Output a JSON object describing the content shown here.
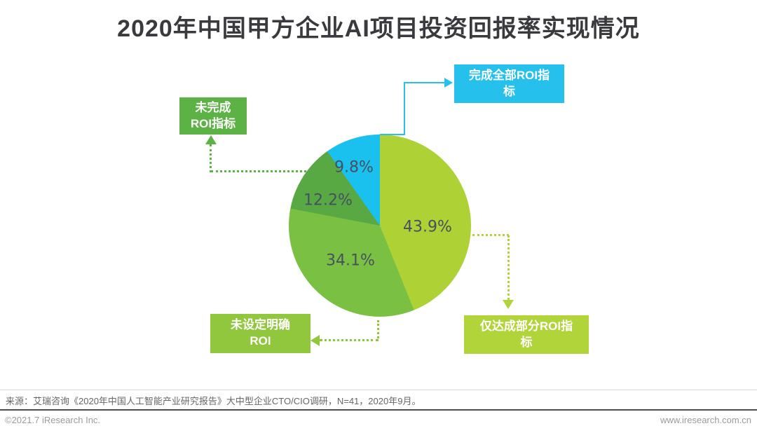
{
  "title": "2020年中国甲方企业AI项目投资回报率实现情况",
  "chart_data": {
    "type": "pie",
    "title": "2020年中国甲方企业AI项目投资回报率实现情况",
    "unit": "%",
    "start_angle_deg": 0,
    "direction": "clockwise",
    "segments": [
      {
        "label": "仅达成部分ROI指标",
        "value": 43.9,
        "display": "43.9%",
        "color": "#aed136"
      },
      {
        "label": "未设定明确ROI",
        "value": 34.1,
        "display": "34.1%",
        "color": "#7ac143"
      },
      {
        "label": "未完成ROI指标",
        "value": 12.2,
        "display": "12.2%",
        "color": "#58a944"
      },
      {
        "label": "完成全部ROI指标",
        "value": 9.8,
        "display": "9.8%",
        "color": "#1ac0ee"
      }
    ],
    "legend_position": "callout-boxes",
    "value_label_color": "#46515d"
  },
  "callouts": {
    "complete_all": {
      "line1": "完成全部ROI指",
      "line2": "标",
      "color": "#25c1ec"
    },
    "not_complete": {
      "line1": "未完成",
      "line2": "ROI指标",
      "color": "#5db246"
    },
    "no_roi_set": {
      "line1": "未设定明确",
      "line2": "ROI",
      "color": "#91c73d"
    },
    "partial": {
      "line1": "仅达成部分ROI指",
      "line2": "标",
      "color": "#b1d43a"
    }
  },
  "source": "来源：艾瑞咨询《2020年中国人工智能产业研究报告》大中型企业CTO/CIO调研，N=41，2020年9月。",
  "footer": {
    "left": "©2021.7 iResearch Inc.",
    "right": "www.iresearch.com.cn"
  }
}
